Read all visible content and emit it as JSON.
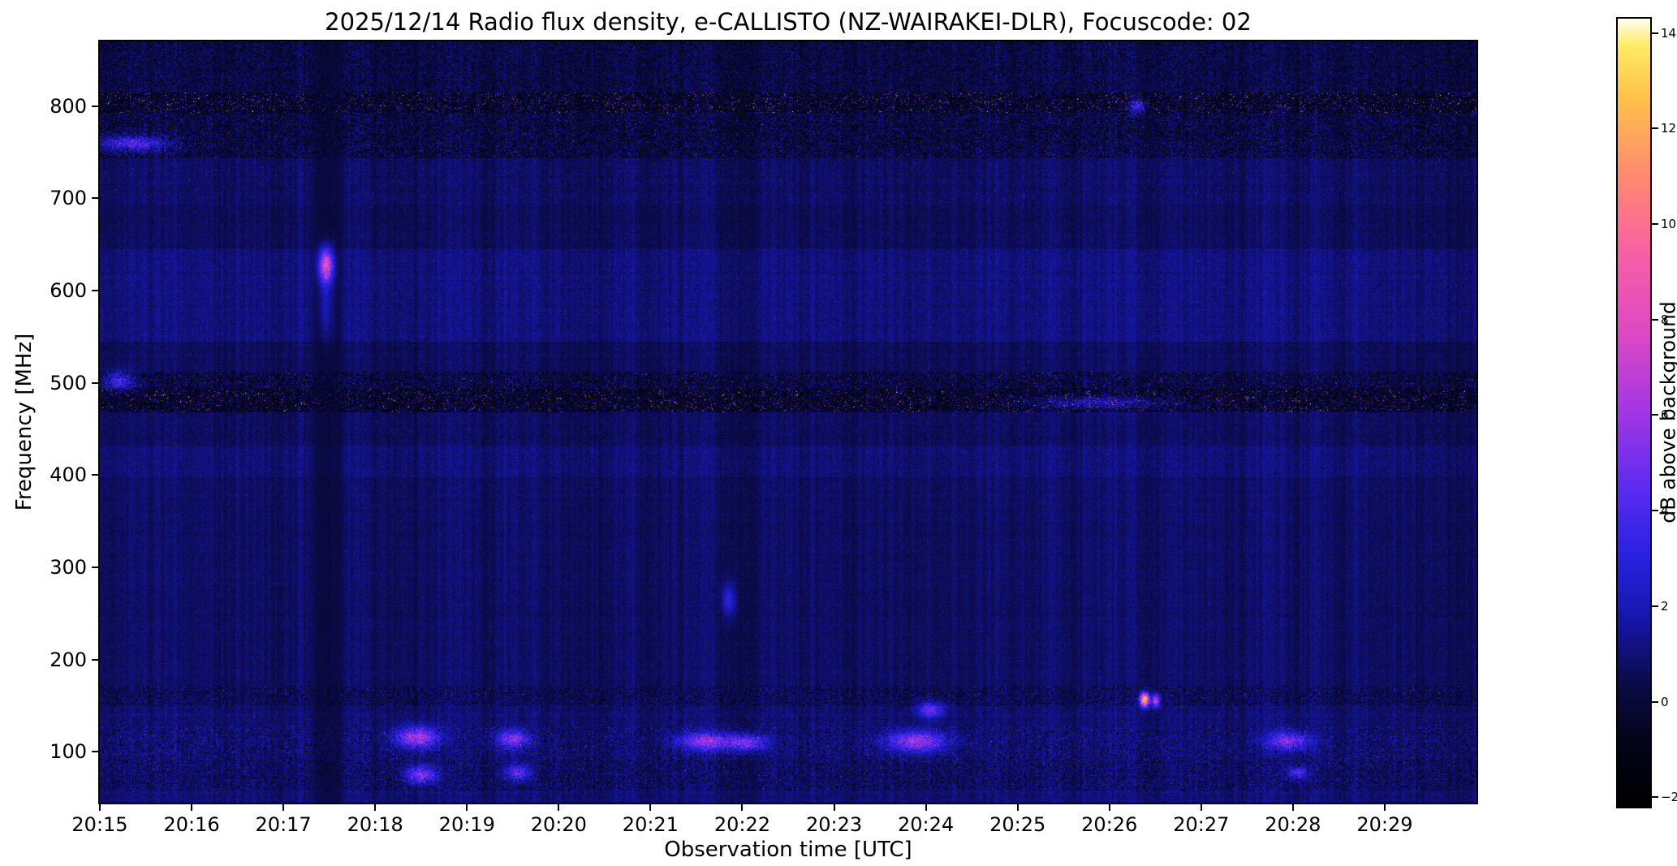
{
  "chart_data": {
    "type": "heatmap",
    "title": "2025/12/14  Radio flux density, e-CALLISTO (NZ-WAIRAKEI-DLR), Focuscode: 02",
    "xlabel": "Observation time [UTC]",
    "ylabel": "Frequency [MHz]",
    "x_ticks": [
      "20:15",
      "20:16",
      "20:17",
      "20:18",
      "20:19",
      "20:20",
      "20:21",
      "20:22",
      "20:23",
      "20:24",
      "20:25",
      "20:26",
      "20:27",
      "20:28",
      "20:29"
    ],
    "x_span_minutes": 15,
    "y_ticks": [
      100,
      200,
      300,
      400,
      500,
      600,
      700,
      800
    ],
    "ylim": [
      45,
      870
    ],
    "grid": false,
    "colorbar": {
      "label": "dB above background",
      "clim": [
        -2.2,
        14.3
      ],
      "ticks": [
        {
          "value": 14,
          "label": "14"
        },
        {
          "value": 12,
          "label": "12"
        },
        {
          "value": 10,
          "label": "10"
        },
        {
          "value": 8,
          "label": "8"
        },
        {
          "value": 6,
          "label": "6"
        },
        {
          "value": 4,
          "label": "4"
        },
        {
          "value": 2,
          "label": "2"
        },
        {
          "value": 0,
          "label": "0"
        },
        {
          "value": -2,
          "label": "−2"
        }
      ]
    },
    "colormap_stops": [
      [
        0.0,
        "#000000"
      ],
      [
        0.09,
        "#05051f"
      ],
      [
        0.155,
        "#0b0b47"
      ],
      [
        0.24,
        "#1717ad"
      ],
      [
        0.32,
        "#2a22e2"
      ],
      [
        0.4,
        "#5a2cf0"
      ],
      [
        0.5,
        "#a336e6"
      ],
      [
        0.6,
        "#dd49c4"
      ],
      [
        0.7,
        "#f95fa7"
      ],
      [
        0.8,
        "#ff8a70"
      ],
      [
        0.9,
        "#ffc24a"
      ],
      [
        0.965,
        "#ffeb66"
      ],
      [
        1.0,
        "#fffff2"
      ]
    ],
    "background_level_db": 0.5,
    "bands": [
      {
        "f0": 815,
        "f1": 870,
        "add": -0.15,
        "darkP": 0.22,
        "speckleP": 0.3,
        "speckleAmp": 1.6
      },
      {
        "f0": 793,
        "f1": 815,
        "add": -0.6,
        "darkP": 0.42,
        "speckleP": 0.28,
        "speckleAmp": 3.0,
        "sparkleP": 0.045,
        "sparkleAmp": 8.5,
        "hotP": 0.004
      },
      {
        "f0": 743,
        "f1": 793,
        "add": -0.2,
        "darkP": 0.3,
        "speckleP": 0.34,
        "speckleAmp": 2.4,
        "sparkleP": 0.006,
        "sparkleAmp": 4.5
      },
      {
        "f0": 695,
        "f1": 743,
        "add": 0.15,
        "speckleP": 0.16,
        "speckleAmp": 1.3,
        "sparkleP": 0.003,
        "sparkleAmp": 3.5
      },
      {
        "f0": 645,
        "f1": 695,
        "add": 0.1,
        "speckleP": 0.09,
        "speckleAmp": 0.9
      },
      {
        "f0": 545,
        "f1": 645,
        "add": 0.5,
        "speckleP": 0.2,
        "speckleAmp": 1.1
      },
      {
        "f0": 512,
        "f1": 545,
        "add": 0.12,
        "speckleP": 0.08,
        "speckleAmp": 0.9
      },
      {
        "f0": 494,
        "f1": 512,
        "add": -0.25,
        "darkP": 0.28,
        "speckleP": 0.3,
        "speckleAmp": 2.4,
        "sparkleP": 0.012,
        "sparkleAmp": 6.0
      },
      {
        "f0": 468,
        "f1": 494,
        "add": -0.55,
        "darkP": 0.42,
        "speckleP": 0.26,
        "speckleAmp": 2.6,
        "sparkleP": 0.04,
        "sparkleAmp": 8.5,
        "hotP": 0.003
      },
      {
        "f0": 432,
        "f1": 468,
        "add": 0.12,
        "speckleP": 0.14,
        "speckleAmp": 1.2
      },
      {
        "f0": 398,
        "f1": 432,
        "add": 0.42,
        "speckleP": 0.2,
        "speckleAmp": 1.0
      },
      {
        "f0": 172,
        "f1": 398,
        "add": 0.22,
        "speckleP": 0.06,
        "speckleAmp": 0.8
      },
      {
        "f0": 150,
        "f1": 172,
        "add": 0.05,
        "darkP": 0.14,
        "speckleP": 0.26,
        "speckleAmp": 1.9,
        "sparkleP": 0.004,
        "sparkleAmp": 5.0
      },
      {
        "f0": 128,
        "f1": 150,
        "add": 0.28,
        "speckleP": 0.2,
        "speckleAmp": 1.5,
        "sparkleP": 0.003,
        "sparkleAmp": 3.5
      },
      {
        "f0": 92,
        "f1": 128,
        "add": 0.32,
        "darkP": 0.08,
        "speckleP": 0.3,
        "speckleAmp": 2.0,
        "sparkleP": 0.01,
        "sparkleAmp": 4.5
      },
      {
        "f0": 58,
        "f1": 92,
        "add": 0.18,
        "darkP": 0.12,
        "speckleP": 0.3,
        "speckleAmp": 1.9,
        "sparkleP": 0.006,
        "sparkleAmp": 4.5
      },
      {
        "f0": 45,
        "f1": 58,
        "add": 0.38,
        "speckleP": 0.2,
        "speckleAmp": 1.2
      }
    ],
    "time_bands": [
      {
        "t0": 2.28,
        "t1": 2.68,
        "mult": 0.5,
        "shift": -0.45
      }
    ],
    "events": [
      {
        "t": 2.46,
        "f": 628,
        "st": 0.055,
        "sf": 13,
        "amp": 8.5
      },
      {
        "t": 2.46,
        "f": 585,
        "st": 0.05,
        "sf": 25,
        "amp": 2.0
      },
      {
        "t": 11.38,
        "f": 157,
        "st": 0.035,
        "sf": 5,
        "amp": 15.0
      },
      {
        "t": 11.5,
        "f": 156,
        "st": 0.03,
        "sf": 5,
        "amp": 8.0
      },
      {
        "t": 3.45,
        "f": 116,
        "st": 0.16,
        "sf": 8,
        "amp": 6.5
      },
      {
        "t": 3.5,
        "f": 76,
        "st": 0.12,
        "sf": 7,
        "amp": 5.5
      },
      {
        "t": 4.5,
        "f": 114,
        "st": 0.12,
        "sf": 7,
        "amp": 5.0
      },
      {
        "t": 4.55,
        "f": 78,
        "st": 0.09,
        "sf": 6,
        "amp": 4.5
      },
      {
        "t": 6.6,
        "f": 112,
        "st": 0.2,
        "sf": 7,
        "amp": 5.5
      },
      {
        "t": 7.05,
        "f": 110,
        "st": 0.15,
        "sf": 6,
        "amp": 5.0
      },
      {
        "t": 6.85,
        "f": 265,
        "st": 0.05,
        "sf": 12,
        "amp": 3.0
      },
      {
        "t": 8.9,
        "f": 112,
        "st": 0.22,
        "sf": 8,
        "amp": 6.0
      },
      {
        "t": 9.05,
        "f": 146,
        "st": 0.1,
        "sf": 6,
        "amp": 4.5
      },
      {
        "t": 0.35,
        "f": 760,
        "st": 0.28,
        "sf": 6,
        "amp": 4.5
      },
      {
        "t": 0.2,
        "f": 502,
        "st": 0.12,
        "sf": 7,
        "amp": 4.0
      },
      {
        "t": 10.9,
        "f": 479,
        "st": 0.55,
        "sf": 5,
        "amp": 3.0
      },
      {
        "t": 12.95,
        "f": 112,
        "st": 0.16,
        "sf": 7,
        "amp": 5.0
      },
      {
        "t": 13.05,
        "f": 78,
        "st": 0.08,
        "sf": 5,
        "amp": 4.0
      },
      {
        "t": 11.3,
        "f": 800,
        "st": 0.06,
        "sf": 5,
        "amp": 5.0
      }
    ]
  }
}
